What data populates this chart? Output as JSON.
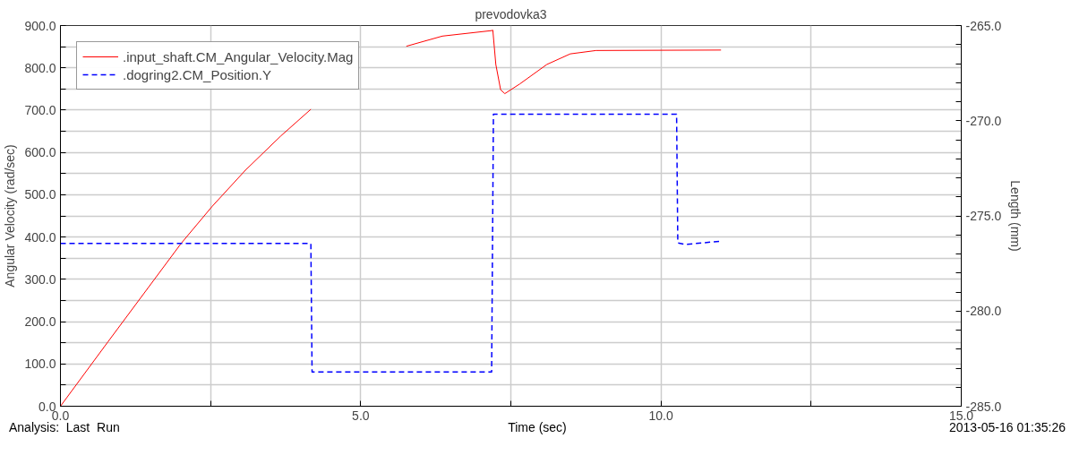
{
  "chart_data": {
    "type": "line",
    "title": "prevodovka3",
    "xlabel": "Time (sec)",
    "ylabel": "Angular Velocity (rad/sec)",
    "y2label": "Length (mm)",
    "annotations": [
      "Analysis:  Last  Run",
      "2013-05-16 01:35:26"
    ],
    "series": [
      {
        "name": ".input_shaft.CM_Angular_Velocity.Mag",
        "color": "#ff0000",
        "line_style": "solid",
        "x": [
          0,
          0.79,
          2.01,
          2.53,
          3.08,
          3.67,
          4.17,
          4.77,
          5.3,
          5.76,
          6.36,
          7.18,
          7.2,
          7.25,
          7.33,
          7.4,
          7.65,
          8.1,
          8.49,
          8.92,
          11.0
        ],
        "values": [
          0,
          152,
          385,
          473,
          558,
          639,
          702,
          null,
          null,
          851,
          875,
          888,
          889,
          808,
          748,
          739,
          762,
          808,
          833,
          841,
          842
        ]
      },
      {
        "name": ".dogring2.CM_Position.Y",
        "color": "#0000ff",
        "line_style": "dashed",
        "axis": "y2",
        "x": [
          0,
          4.17,
          4.19,
          7.18,
          7.21,
          10.26,
          10.28,
          10.41,
          11.0
        ],
        "values": [
          -276.45,
          -276.45,
          -283.2,
          -283.2,
          -269.66,
          -269.66,
          -276.42,
          -276.5,
          -276.33
        ]
      }
    ],
    "xlim": [
      0,
      15
    ],
    "xticks": [
      {
        "value": 0,
        "label": "0.0"
      },
      {
        "value": 2.5,
        "label": null
      },
      {
        "value": 5,
        "label": "5.0"
      },
      {
        "value": 7.5,
        "label": null
      },
      {
        "value": 10,
        "label": "10.0"
      },
      {
        "value": 12.5,
        "label": null
      },
      {
        "value": 15,
        "label": "15.0"
      }
    ],
    "ylim": [
      0,
      900
    ],
    "yticks": [
      {
        "value": 0,
        "label": "0.0"
      },
      {
        "value": 50,
        "label": null
      },
      {
        "value": 100,
        "label": "100.0"
      },
      {
        "value": 150,
        "label": null
      },
      {
        "value": 200,
        "label": "200.0"
      },
      {
        "value": 250,
        "label": null
      },
      {
        "value": 300,
        "label": "300.0"
      },
      {
        "value": 350,
        "label": null
      },
      {
        "value": 400,
        "label": "400.0"
      },
      {
        "value": 450,
        "label": null
      },
      {
        "value": 500,
        "label": "500.0"
      },
      {
        "value": 550,
        "label": null
      },
      {
        "value": 600,
        "label": "600.0"
      },
      {
        "value": 650,
        "label": null
      },
      {
        "value": 700,
        "label": "700.0"
      },
      {
        "value": 750,
        "label": null
      },
      {
        "value": 800,
        "label": "800.0"
      },
      {
        "value": 850,
        "label": null
      },
      {
        "value": 900,
        "label": "900.0"
      }
    ],
    "y2lim": [
      -285,
      -265
    ],
    "y2ticks": [
      {
        "value": -285,
        "label": "-285.0"
      },
      {
        "value": -284,
        "label": null
      },
      {
        "value": -283,
        "label": null
      },
      {
        "value": -282,
        "label": null
      },
      {
        "value": -281,
        "label": null
      },
      {
        "value": -280,
        "label": "-280.0"
      },
      {
        "value": -279,
        "label": null
      },
      {
        "value": -278,
        "label": null
      },
      {
        "value": -277,
        "label": null
      },
      {
        "value": -276,
        "label": null
      },
      {
        "value": -275,
        "label": "-275.0"
      },
      {
        "value": -274,
        "label": null
      },
      {
        "value": -273,
        "label": null
      },
      {
        "value": -272,
        "label": null
      },
      {
        "value": -271,
        "label": null
      },
      {
        "value": -270,
        "label": "-270.0"
      },
      {
        "value": -269,
        "label": null
      },
      {
        "value": -268,
        "label": null
      },
      {
        "value": -267,
        "label": null
      },
      {
        "value": -266,
        "label": null
      },
      {
        "value": -265,
        "label": "-265.0"
      }
    ],
    "grid": true,
    "legend": "top left",
    "marker": "none"
  }
}
